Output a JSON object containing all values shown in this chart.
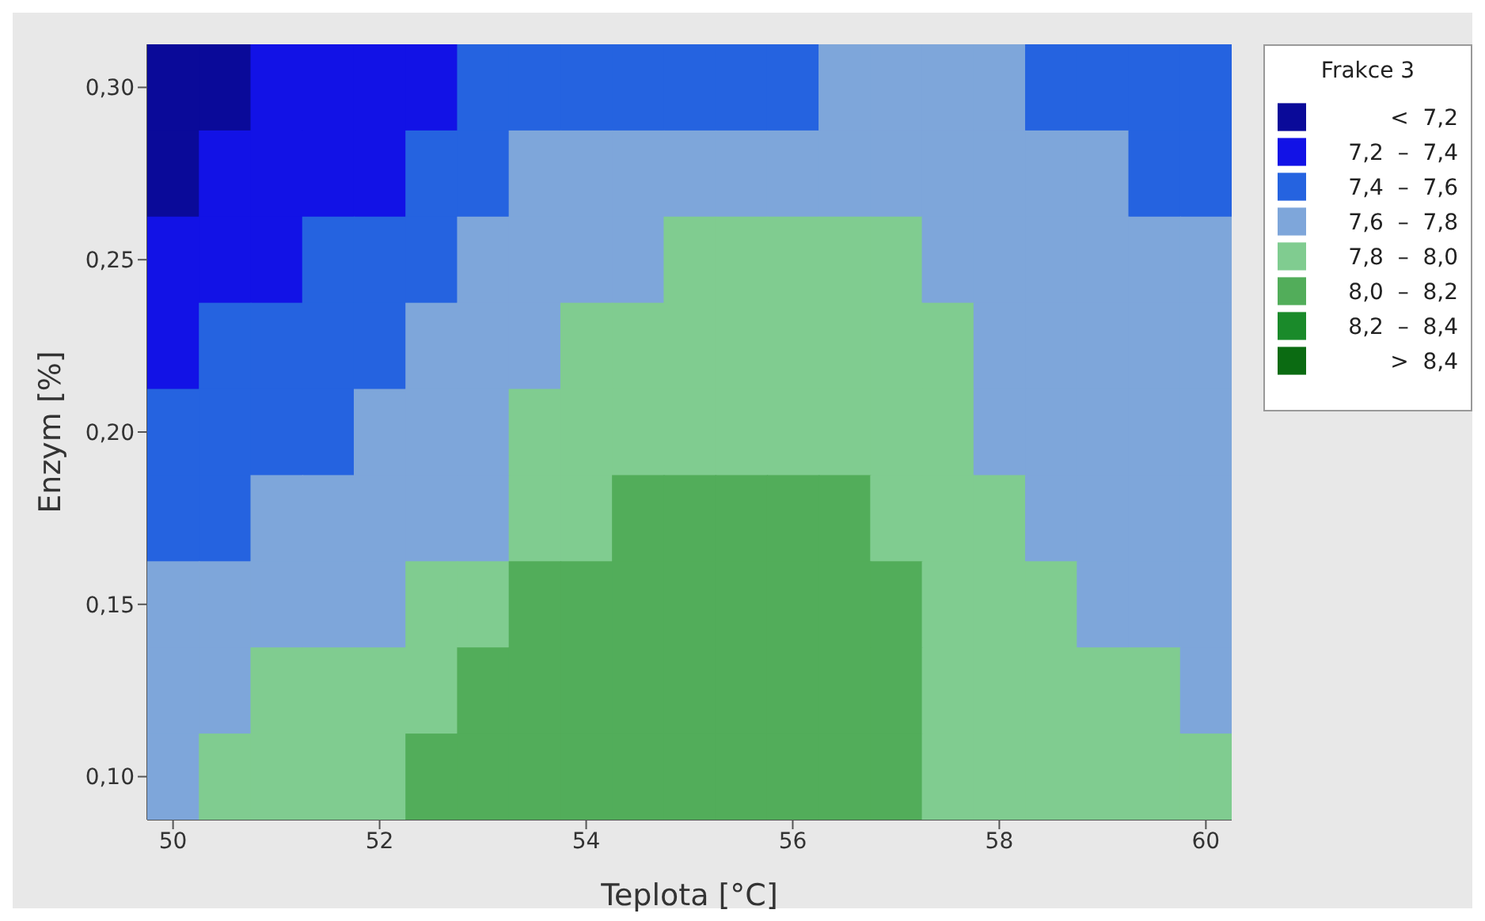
{
  "chart_data": {
    "type": "heatmap",
    "xlabel": "Teplota [°C]",
    "ylabel": "Enzym [%]",
    "legend_title": "Frakce 3",
    "categories": [
      "50",
      null,
      null,
      null,
      "52",
      null,
      null,
      null,
      "54",
      null,
      null,
      null,
      "56",
      null,
      null,
      null,
      "58",
      null,
      null,
      null,
      "60"
    ],
    "y_categories": [
      "0,30",
      null,
      "0,25",
      null,
      "0,20",
      null,
      "0,15",
      null,
      "0,10"
    ],
    "clim": [
      7.0,
      8.6
    ],
    "cticks": [
      {
        "value": 7.1,
        "label": "<  7,2"
      },
      {
        "value": 7.3,
        "label": "7,2  –  7,4"
      },
      {
        "value": 7.5,
        "label": "7,4  –  7,6"
      },
      {
        "value": 7.7,
        "label": "7,6  –  7,8"
      },
      {
        "value": 7.9,
        "label": "7,8  –  8,0"
      },
      {
        "value": 8.1,
        "label": "8,0  –  8,2"
      },
      {
        "value": 8.3,
        "label": "8,2  –  8,4"
      },
      {
        "value": 8.5,
        "label": ">  8,4"
      }
    ],
    "colors": [
      "#0a0a99",
      "#1212e6",
      "#2563e0",
      "#7ea6da",
      "#80cc90",
      "#52ad5a",
      "#1a8a2a",
      "#0b6b12"
    ],
    "cells": [
      [
        7.1,
        7.1,
        7.3,
        7.3,
        7.3,
        7.3,
        7.5,
        7.5,
        7.5,
        7.5,
        7.5,
        7.5,
        7.5,
        7.7,
        7.7,
        7.7,
        7.7,
        7.5,
        7.5,
        7.5,
        7.5
      ],
      [
        7.1,
        7.3,
        7.3,
        7.3,
        7.3,
        7.5,
        7.5,
        7.7,
        7.7,
        7.7,
        7.7,
        7.7,
        7.7,
        7.7,
        7.7,
        7.7,
        7.7,
        7.7,
        7.7,
        7.5,
        7.5
      ],
      [
        7.3,
        7.3,
        7.3,
        7.5,
        7.5,
        7.5,
        7.7,
        7.7,
        7.7,
        7.7,
        7.9,
        7.9,
        7.9,
        7.9,
        7.9,
        7.7,
        7.7,
        7.7,
        7.7,
        7.7,
        7.7
      ],
      [
        7.3,
        7.5,
        7.5,
        7.5,
        7.5,
        7.7,
        7.7,
        7.7,
        7.9,
        7.9,
        7.9,
        7.9,
        7.9,
        7.9,
        7.9,
        7.9,
        7.7,
        7.7,
        7.7,
        7.7,
        7.7
      ],
      [
        7.5,
        7.5,
        7.5,
        7.5,
        7.7,
        7.7,
        7.7,
        7.9,
        7.9,
        7.9,
        7.9,
        7.9,
        7.9,
        7.9,
        7.9,
        7.9,
        7.7,
        7.7,
        7.7,
        7.7,
        7.7
      ],
      [
        7.5,
        7.5,
        7.7,
        7.7,
        7.7,
        7.7,
        7.7,
        7.9,
        7.9,
        8.1,
        8.1,
        8.1,
        8.1,
        8.1,
        7.9,
        7.9,
        7.9,
        7.7,
        7.7,
        7.7,
        7.7
      ],
      [
        7.7,
        7.7,
        7.7,
        7.7,
        7.7,
        7.9,
        7.9,
        8.1,
        8.1,
        8.1,
        8.1,
        8.1,
        8.1,
        8.1,
        8.1,
        7.9,
        7.9,
        7.9,
        7.7,
        7.7,
        7.7
      ],
      [
        7.7,
        7.7,
        7.9,
        7.9,
        7.9,
        7.9,
        8.1,
        8.1,
        8.1,
        8.1,
        8.1,
        8.1,
        8.1,
        8.1,
        8.1,
        7.9,
        7.9,
        7.9,
        7.9,
        7.9,
        7.7
      ],
      [
        7.7,
        7.9,
        7.9,
        7.9,
        7.9,
        8.1,
        8.1,
        8.1,
        8.1,
        8.1,
        8.1,
        8.1,
        8.1,
        8.1,
        8.1,
        7.9,
        7.9,
        7.9,
        7.9,
        7.9,
        7.9
      ]
    ]
  }
}
